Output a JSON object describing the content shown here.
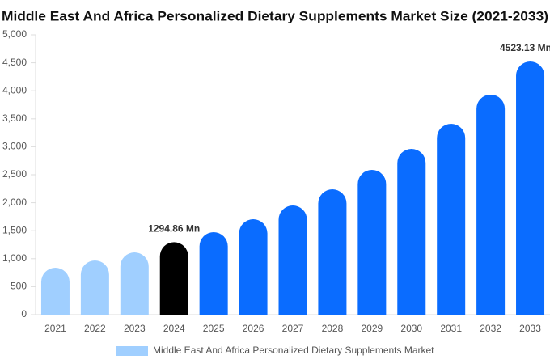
{
  "chart_data": {
    "type": "bar",
    "title": "Middle East And Africa Personalized Dietary Supplements Market Size (2021-2033)",
    "categories": [
      "2021",
      "2022",
      "2023",
      "2024",
      "2025",
      "2026",
      "2027",
      "2028",
      "2029",
      "2030",
      "2031",
      "2032",
      "2033"
    ],
    "series": [
      {
        "name": "Middle East And Africa Personalized Dietary Supplements Market",
        "color": "#a0cfff",
        "values": [
          838,
          968,
          1113,
          1294.86,
          1474,
          1705,
          1951,
          2240,
          2587,
          2962,
          3410,
          3931,
          4523.13
        ],
        "value_labels": [
          null,
          null,
          null,
          "1294.86 Mn",
          null,
          null,
          null,
          null,
          null,
          null,
          null,
          null,
          "4523.13 Mn"
        ],
        "colors": [
          "#a0cfff",
          "#a0cfff",
          "#a0cfff",
          "#000000",
          "#0a6cff",
          "#0a6cff",
          "#0a6cff",
          "#0a6cff",
          "#0a6cff",
          "#0a6cff",
          "#0a6cff",
          "#0a6cff",
          "#0a6cff"
        ]
      }
    ],
    "ylim": [
      0,
      5000
    ],
    "yticks": [
      0,
      500,
      {
        "value": 1000,
        "label": "1,000"
      },
      {
        "value": 1500,
        "label": "1,500"
      },
      {
        "value": 2000,
        "label": "2,000"
      },
      {
        "value": 2500,
        "label": "2,500"
      },
      {
        "value": 3000,
        "label": "3,000"
      },
      {
        "value": 3500,
        "label": "3,500"
      },
      {
        "value": 4000,
        "label": "4,000"
      },
      {
        "value": 4500,
        "label": "4,500"
      },
      {
        "value": 5000,
        "label": "5,000"
      }
    ],
    "grid": false,
    "legend": "bottom"
  }
}
